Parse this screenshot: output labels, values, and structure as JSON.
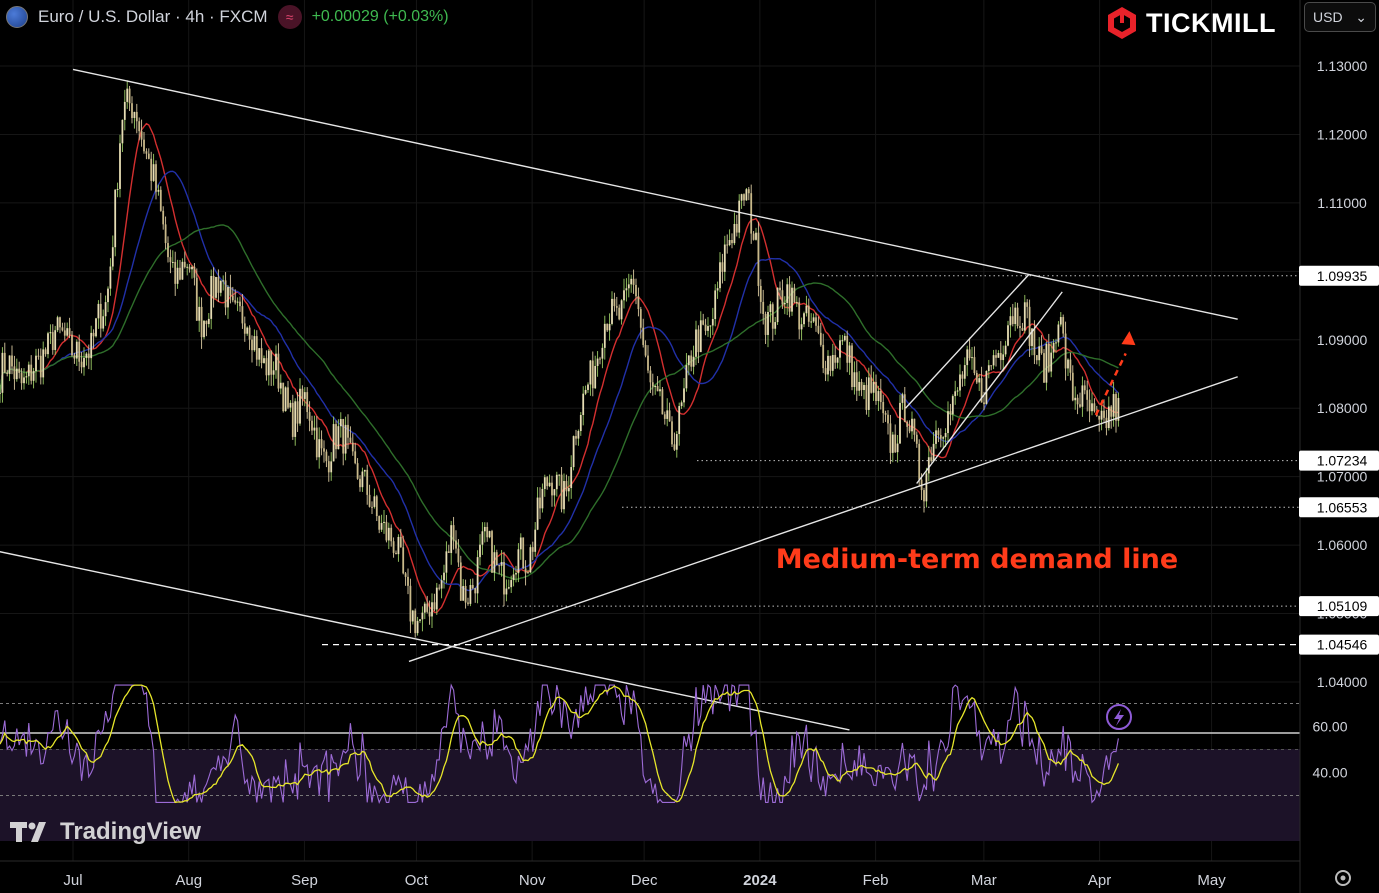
{
  "header": {
    "symbol": "Euro / U.S. Dollar · 4h · FXCM",
    "change": "+0.00029 (+0.03%)",
    "flag_icon": "eu-us-flag-icon",
    "indicator_icon": "wave-icon"
  },
  "brand": {
    "name": "TICKMILL",
    "logo_icon": "tickmill-hexagon-icon"
  },
  "currency_selector": {
    "value": "USD"
  },
  "watermark": {
    "text": "TradingView"
  },
  "colors": {
    "background": "#000000",
    "candle_up": "#d8d0b0",
    "candle_down": "#d8d0b0",
    "ma_fast": "#d32f2f",
    "ma_mid": "#2130a8",
    "ma_slow": "#2e6e2a",
    "rsi_line": "#9c6bd6",
    "rsi_signal": "#e6e62a",
    "annotation": "#ff3b1a",
    "trendline": "#e6e6e6"
  },
  "chart_data": [
    {
      "type": "candlestick",
      "interval": "4h",
      "instrument": "EUR/USD",
      "x_labels": [
        "Jul",
        "Aug",
        "Sep",
        "Oct",
        "Nov",
        "Dec",
        "2024",
        "Feb",
        "Mar",
        "Apr",
        "May"
      ],
      "ylim": [
        1.033,
        1.1385
      ],
      "y_ticks": [
        1.04,
        1.05,
        1.06,
        1.07,
        1.08,
        1.09,
        1.1,
        1.11,
        1.12,
        1.13
      ],
      "y_tick_labels": [
        "1.04000",
        "1.05000",
        "1.06000",
        "1.07000",
        "1.08000",
        "1.09000",
        "1.10000",
        "1.11000",
        "1.12000",
        "1.13000"
      ],
      "highlighted_levels": [
        {
          "value": 1.09935,
          "label": "1.09935",
          "style": "dotted"
        },
        {
          "value": 1.07234,
          "label": "1.07234",
          "style": "dotted"
        },
        {
          "value": 1.06553,
          "label": "1.06553",
          "style": "dotted"
        },
        {
          "value": 1.05109,
          "label": "1.05109",
          "style": "dotted"
        },
        {
          "value": 1.04546,
          "label": "1.04546",
          "style": "dashed"
        }
      ],
      "price_path": [
        [
          "2023-06-22",
          1.085
        ],
        [
          "2023-06-26",
          1.093
        ],
        [
          "2023-06-30",
          1.087
        ],
        [
          "2023-07-04",
          1.09
        ],
        [
          "2023-07-06",
          1.088
        ],
        [
          "2023-07-10",
          1.096
        ],
        [
          "2023-07-14",
          1.122
        ],
        [
          "2023-07-18",
          1.124
        ],
        [
          "2023-07-20",
          1.12
        ],
        [
          "2023-07-24",
          1.108
        ],
        [
          "2023-07-28",
          1.1
        ],
        [
          "2023-08-01",
          1.1
        ],
        [
          "2023-08-04",
          1.094
        ],
        [
          "2023-08-10",
          1.098
        ],
        [
          "2023-08-15",
          1.093
        ],
        [
          "2023-08-22",
          1.087
        ],
        [
          "2023-08-28",
          1.08
        ],
        [
          "2023-09-01",
          1.08
        ],
        [
          "2023-09-07",
          1.073
        ],
        [
          "2023-09-12",
          1.076
        ],
        [
          "2023-09-18",
          1.066
        ],
        [
          "2023-09-22",
          1.064
        ],
        [
          "2023-09-28",
          1.054
        ],
        [
          "2023-10-03",
          1.047
        ],
        [
          "2023-10-06",
          1.053
        ],
        [
          "2023-10-11",
          1.062
        ],
        [
          "2023-10-13",
          1.052
        ],
        [
          "2023-10-19",
          1.059
        ],
        [
          "2023-10-26",
          1.056
        ],
        [
          "2023-10-31",
          1.059
        ],
        [
          "2023-11-02",
          1.064
        ],
        [
          "2023-11-07",
          1.07
        ],
        [
          "2023-11-10",
          1.068
        ],
        [
          "2023-11-16",
          1.085
        ],
        [
          "2023-11-21",
          1.092
        ],
        [
          "2023-11-28",
          1.098
        ],
        [
          "2023-12-01",
          1.088
        ],
        [
          "2023-12-05",
          1.08
        ],
        [
          "2023-12-08",
          1.074
        ],
        [
          "2023-12-13",
          1.086
        ],
        [
          "2023-12-18",
          1.092
        ],
        [
          "2023-12-22",
          1.1
        ],
        [
          "2023-12-28",
          1.113
        ],
        [
          "2024-01-02",
          1.094
        ],
        [
          "2024-01-08",
          1.096
        ],
        [
          "2024-01-12",
          1.095
        ],
        [
          "2024-01-17",
          1.088
        ],
        [
          "2024-01-22",
          1.089
        ],
        [
          "2024-01-26",
          1.085
        ],
        [
          "2024-01-30",
          1.082
        ],
        [
          "2024-02-02",
          1.079
        ],
        [
          "2024-02-06",
          1.076
        ],
        [
          "2024-02-09",
          1.079
        ],
        [
          "2024-02-14",
          1.07
        ],
        [
          "2024-02-20",
          1.08
        ],
        [
          "2024-02-26",
          1.085
        ],
        [
          "2024-03-01",
          1.084
        ],
        [
          "2024-03-05",
          1.087
        ],
        [
          "2024-03-08",
          1.096
        ],
        [
          "2024-03-12",
          1.092
        ],
        [
          "2024-03-15",
          1.089
        ],
        [
          "2024-03-19",
          1.086
        ],
        [
          "2024-03-21",
          1.093
        ],
        [
          "2024-03-25",
          1.083
        ],
        [
          "2024-03-28",
          1.079
        ],
        [
          "2024-03-31",
          1.0785
        ]
      ],
      "annotations": [
        {
          "text": "Medium-term demand line",
          "color": "#ff3b1a"
        }
      ]
    },
    {
      "type": "line",
      "indicator": "RSI",
      "ylim": [
        26,
        78
      ],
      "y_ticks": [
        40,
        60
      ],
      "y_tick_labels": [
        "40.00",
        "60.00"
      ],
      "band": [
        30,
        70
      ]
    }
  ]
}
